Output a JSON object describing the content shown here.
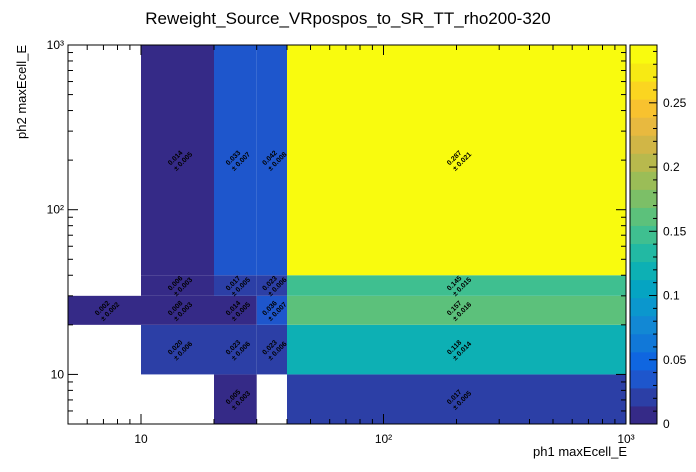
{
  "chart_data": {
    "type": "heatmap",
    "title": "Reweight_Source_VRpospos_to_SR_TT_rho200-320",
    "xlabel": "ph1 maxEcell_E",
    "ylabel": "ph2 maxEcell_E",
    "x_scale": "log",
    "y_scale": "log",
    "xlim": [
      5,
      1000
    ],
    "ylim": [
      5,
      1000
    ],
    "x_ticks": [
      {
        "value": 10,
        "label": "10"
      },
      {
        "value": 100,
        "label": "10²"
      },
      {
        "value": 1000,
        "label": "10³"
      }
    ],
    "y_ticks": [
      {
        "value": 10,
        "label": "10"
      },
      {
        "value": 100,
        "label": "10²"
      },
      {
        "value": 1000,
        "label": "10³"
      }
    ],
    "colorbar": {
      "min": 0,
      "max": 0.295,
      "ticks": [
        "0",
        "0.05",
        "0.1",
        "0.15",
        "0.2",
        "0.25"
      ],
      "tick_values": [
        0,
        0.05,
        0.1,
        0.15,
        0.2,
        0.25
      ],
      "palette": [
        "#352a87",
        "#2c3fa6",
        "#1e56cc",
        "#0f66e0",
        "#1178d8",
        "#1288d4",
        "#0b97cd",
        "#05a4c2",
        "#0db0b4",
        "#22b9a3",
        "#3fbf90",
        "#5cc17b",
        "#7cbf67",
        "#9bbd57",
        "#b8b94d",
        "#d1b646",
        "#e8b93f",
        "#f8c22f",
        "#fbd520",
        "#f7ea14",
        "#f9fb0e"
      ]
    },
    "cells": [
      {
        "x0": 5,
        "x1": 10,
        "y0": 20,
        "y1": 30,
        "value": 0.002,
        "error": 0.002
      },
      {
        "x0": 10,
        "x1": 20,
        "y0": 10,
        "y1": 20,
        "value": 0.02,
        "error": 0.006
      },
      {
        "x0": 10,
        "x1": 20,
        "y0": 20,
        "y1": 30,
        "value": 0.008,
        "error": 0.003
      },
      {
        "x0": 10,
        "x1": 20,
        "y0": 30,
        "y1": 40,
        "value": 0.006,
        "error": 0.003
      },
      {
        "x0": 10,
        "x1": 20,
        "y0": 40,
        "y1": 1000,
        "value": 0.014,
        "error": 0.005
      },
      {
        "x0": 20,
        "x1": 30,
        "y0": 5,
        "y1": 10,
        "value": 0.005,
        "error": 0.003
      },
      {
        "x0": 20,
        "x1": 30,
        "y0": 10,
        "y1": 20,
        "value": 0.023,
        "error": 0.006
      },
      {
        "x0": 20,
        "x1": 30,
        "y0": 20,
        "y1": 30,
        "value": 0.014,
        "error": 0.005
      },
      {
        "x0": 20,
        "x1": 30,
        "y0": 30,
        "y1": 40,
        "value": 0.017,
        "error": 0.005
      },
      {
        "x0": 20,
        "x1": 30,
        "y0": 40,
        "y1": 1000,
        "value": 0.033,
        "error": 0.007
      },
      {
        "x0": 30,
        "x1": 40,
        "y0": 10,
        "y1": 20,
        "value": 0.023,
        "error": 0.006
      },
      {
        "x0": 30,
        "x1": 40,
        "y0": 20,
        "y1": 30,
        "value": 0.036,
        "error": 0.007
      },
      {
        "x0": 30,
        "x1": 40,
        "y0": 30,
        "y1": 40,
        "value": 0.023,
        "error": 0.006
      },
      {
        "x0": 30,
        "x1": 40,
        "y0": 40,
        "y1": 1000,
        "value": 0.042,
        "error": 0.008
      },
      {
        "x0": 40,
        "x1": 1000,
        "y0": 5,
        "y1": 10,
        "value": 0.017,
        "error": 0.005
      },
      {
        "x0": 40,
        "x1": 1000,
        "y0": 10,
        "y1": 20,
        "value": 0.118,
        "error": 0.014
      },
      {
        "x0": 40,
        "x1": 1000,
        "y0": 20,
        "y1": 30,
        "value": 0.157,
        "error": 0.016
      },
      {
        "x0": 40,
        "x1": 1000,
        "y0": 30,
        "y1": 40,
        "value": 0.145,
        "error": 0.015
      },
      {
        "x0": 40,
        "x1": 1000,
        "y0": 40,
        "y1": 1000,
        "value": 0.287,
        "error": 0.021
      }
    ]
  }
}
